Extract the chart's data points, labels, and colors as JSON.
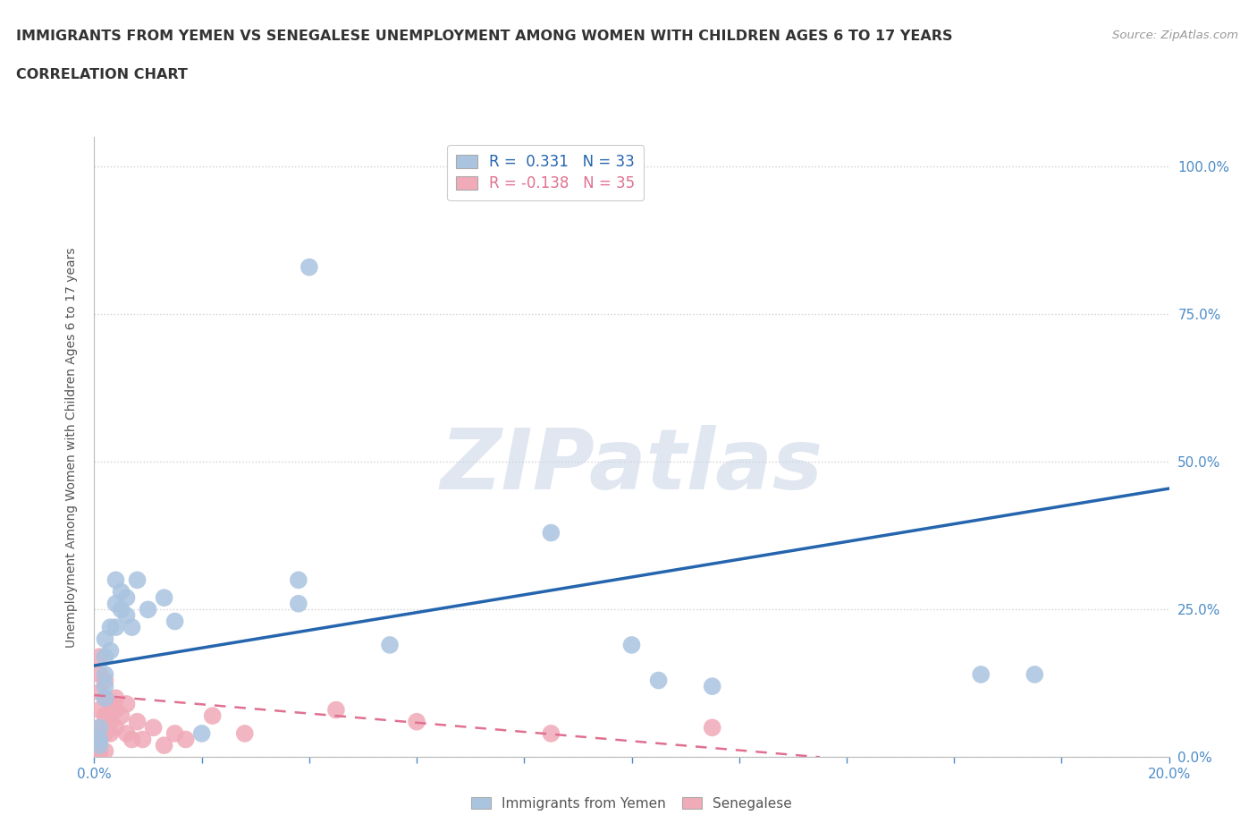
{
  "title_line1": "IMMIGRANTS FROM YEMEN VS SENEGALESE UNEMPLOYMENT AMONG WOMEN WITH CHILDREN AGES 6 TO 17 YEARS",
  "title_line2": "CORRELATION CHART",
  "source_text": "Source: ZipAtlas.com",
  "ylabel": "Unemployment Among Women with Children Ages 6 to 17 years",
  "xlim": [
    0.0,
    0.2
  ],
  "ylim": [
    0.0,
    1.05
  ],
  "xticks": [
    0.0,
    0.02,
    0.04,
    0.06,
    0.08,
    0.1,
    0.12,
    0.14,
    0.16,
    0.18,
    0.2
  ],
  "xticklabels": [
    "0.0%",
    "",
    "",
    "",
    "",
    "",
    "",
    "",
    "",
    "",
    "20.0%"
  ],
  "yticks": [
    0.0,
    0.25,
    0.5,
    0.75,
    1.0
  ],
  "yticklabels": [
    "0.0%",
    "25.0%",
    "50.0%",
    "75.0%",
    "100.0%"
  ],
  "watermark": "ZIPatlas",
  "legend_r1": "R =  0.331   N = 33",
  "legend_r2": "R = -0.138   N = 35",
  "yemen_color": "#aac4e0",
  "senegal_color": "#f0aab8",
  "yemen_line_color": "#2565ae",
  "senegal_line_color": "#e07090",
  "background_color": "#ffffff",
  "grid_color": "#d0d0d0",
  "yemen_points": [
    [
      0.001,
      0.03
    ],
    [
      0.001,
      0.05
    ],
    [
      0.001,
      0.02
    ],
    [
      0.002,
      0.2
    ],
    [
      0.002,
      0.17
    ],
    [
      0.002,
      0.14
    ],
    [
      0.002,
      0.12
    ],
    [
      0.002,
      0.1
    ],
    [
      0.003,
      0.22
    ],
    [
      0.003,
      0.18
    ],
    [
      0.004,
      0.3
    ],
    [
      0.004,
      0.26
    ],
    [
      0.004,
      0.22
    ],
    [
      0.005,
      0.28
    ],
    [
      0.005,
      0.25
    ],
    [
      0.006,
      0.27
    ],
    [
      0.006,
      0.24
    ],
    [
      0.007,
      0.22
    ],
    [
      0.008,
      0.3
    ],
    [
      0.01,
      0.25
    ],
    [
      0.013,
      0.27
    ],
    [
      0.015,
      0.23
    ],
    [
      0.02,
      0.04
    ],
    [
      0.038,
      0.3
    ],
    [
      0.038,
      0.26
    ],
    [
      0.04,
      0.83
    ],
    [
      0.055,
      0.19
    ],
    [
      0.085,
      0.38
    ],
    [
      0.1,
      0.19
    ],
    [
      0.105,
      0.13
    ],
    [
      0.115,
      0.12
    ],
    [
      0.165,
      0.14
    ],
    [
      0.175,
      0.14
    ]
  ],
  "senegal_points": [
    [
      0.001,
      0.03
    ],
    [
      0.001,
      0.05
    ],
    [
      0.001,
      0.08
    ],
    [
      0.001,
      0.11
    ],
    [
      0.001,
      0.14
    ],
    [
      0.001,
      0.17
    ],
    [
      0.001,
      0.01
    ],
    [
      0.001,
      0.0
    ],
    [
      0.002,
      0.04
    ],
    [
      0.002,
      0.07
    ],
    [
      0.002,
      0.1
    ],
    [
      0.002,
      0.13
    ],
    [
      0.002,
      0.01
    ],
    [
      0.003,
      0.04
    ],
    [
      0.003,
      0.09
    ],
    [
      0.003,
      0.06
    ],
    [
      0.004,
      0.05
    ],
    [
      0.004,
      0.1
    ],
    [
      0.004,
      0.08
    ],
    [
      0.005,
      0.07
    ],
    [
      0.006,
      0.04
    ],
    [
      0.006,
      0.09
    ],
    [
      0.007,
      0.03
    ],
    [
      0.008,
      0.06
    ],
    [
      0.009,
      0.03
    ],
    [
      0.011,
      0.05
    ],
    [
      0.013,
      0.02
    ],
    [
      0.015,
      0.04
    ],
    [
      0.017,
      0.03
    ],
    [
      0.022,
      0.07
    ],
    [
      0.028,
      0.04
    ],
    [
      0.045,
      0.08
    ],
    [
      0.06,
      0.06
    ],
    [
      0.085,
      0.04
    ],
    [
      0.115,
      0.05
    ]
  ],
  "yemen_trendline_x": [
    0.0,
    0.2
  ],
  "yemen_trendline_y": [
    0.155,
    0.455
  ],
  "senegal_trendline_x": [
    0.0,
    0.135
  ],
  "senegal_trendline_y": [
    0.105,
    0.0
  ]
}
